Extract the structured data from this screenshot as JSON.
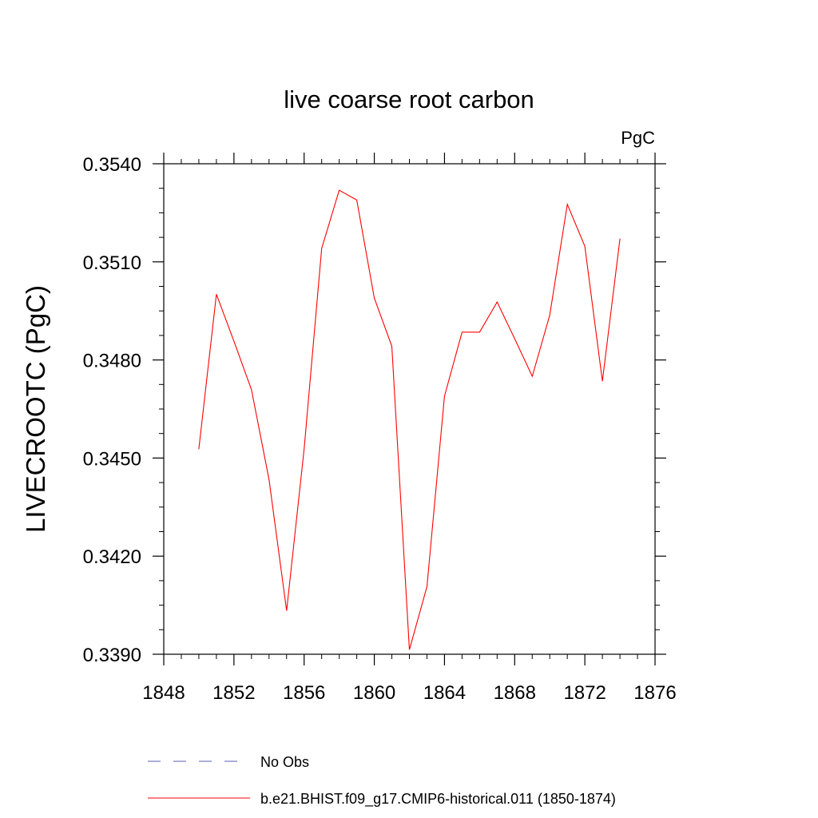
{
  "chart_data": {
    "type": "line",
    "title": "live coarse root carbon",
    "units_label": "PgC",
    "ylabel": "LIVECROOTC  (PgC)",
    "xlabel": "",
    "xlim": [
      1848,
      1876
    ],
    "ylim": [
      0.339,
      0.354
    ],
    "x_ticks": [
      1848,
      1852,
      1856,
      1860,
      1864,
      1868,
      1872,
      1876
    ],
    "x_tick_labels": [
      "1848",
      "1852",
      "1856",
      "1860",
      "1864",
      "1868",
      "1872",
      "1876"
    ],
    "y_ticks": [
      0.339,
      0.342,
      0.345,
      0.348,
      0.351,
      0.354
    ],
    "y_tick_labels": [
      "0.3390",
      "0.3420",
      "0.3450",
      "0.3480",
      "0.3510",
      "0.3540"
    ],
    "grid": false,
    "series": [
      {
        "name": "b.e21.BHIST.f09_g17.CMIP6-historical.011 (1850-1874)",
        "color": "#ff0000",
        "style": "solid",
        "x": [
          1850,
          1851,
          1852,
          1853,
          1854,
          1855,
          1856,
          1857,
          1858,
          1859,
          1860,
          1861,
          1862,
          1863,
          1864,
          1865,
          1866,
          1867,
          1868,
          1869,
          1870,
          1871,
          1872,
          1873,
          1874
        ],
        "y": [
          0.34527,
          0.35001,
          0.34857,
          0.34709,
          0.34434,
          0.34033,
          0.34527,
          0.35141,
          0.35319,
          0.35289,
          0.34989,
          0.34842,
          0.33914,
          0.34107,
          0.34689,
          0.34885,
          0.34885,
          0.34977,
          0.34865,
          0.3475,
          0.34937,
          0.35276,
          0.35148,
          0.34735,
          0.35171
        ]
      }
    ],
    "legend": {
      "placement": "bottom",
      "entries": [
        {
          "label": "No Obs",
          "color": "#5b5bb5",
          "style": "dashed"
        },
        {
          "label": "b.e21.BHIST.f09_g17.CMIP6-historical.011 (1850-1874)",
          "color": "#ff0000",
          "style": "solid"
        }
      ]
    }
  }
}
